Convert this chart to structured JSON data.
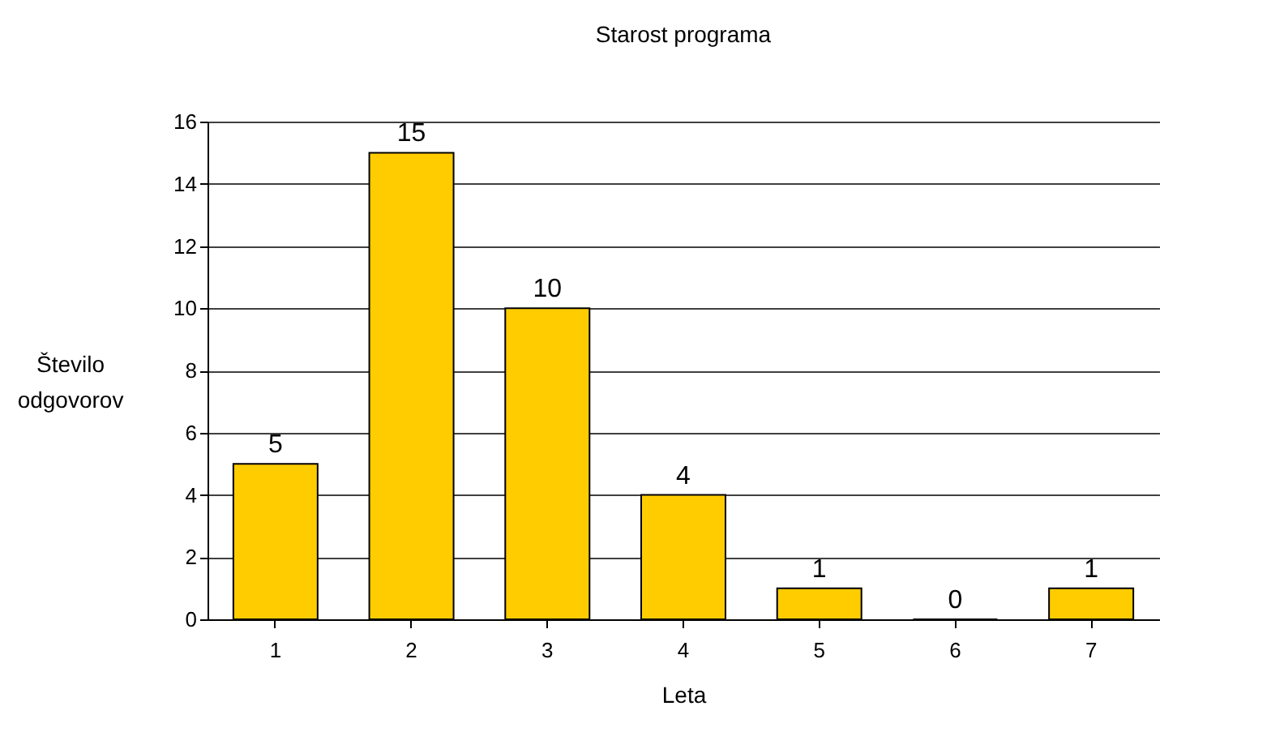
{
  "chart_data": {
    "type": "bar",
    "title": "Starost programa",
    "xlabel": "Leta",
    "ylabel": "Število odgovorov",
    "categories": [
      "1",
      "2",
      "3",
      "4",
      "5",
      "6",
      "7"
    ],
    "values": [
      5,
      15,
      10,
      4,
      1,
      0,
      1
    ],
    "color": "#ffcc00",
    "ylim": [
      0,
      16
    ],
    "yticks": [
      0,
      2,
      4,
      6,
      8,
      10,
      12,
      14,
      16
    ],
    "grid": "y",
    "data_labels": true
  }
}
